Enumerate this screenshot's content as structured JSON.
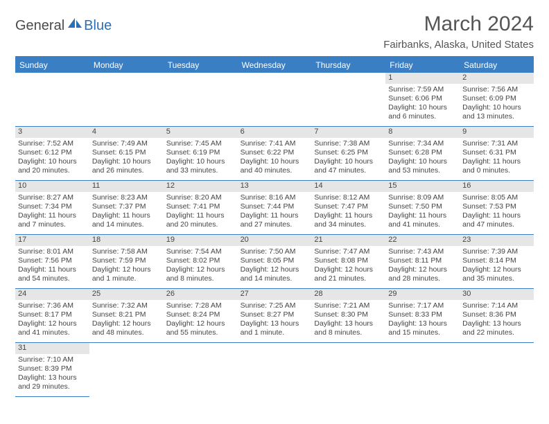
{
  "logo": {
    "text1": "General",
    "text2": "Blue"
  },
  "title": "March 2024",
  "location": "Fairbanks, Alaska, United States",
  "colors": {
    "header_bg": "#3a7fc4",
    "daynum_bg": "#e6e6e6"
  },
  "day_headers": [
    "Sunday",
    "Monday",
    "Tuesday",
    "Wednesday",
    "Thursday",
    "Friday",
    "Saturday"
  ],
  "weeks": [
    [
      null,
      null,
      null,
      null,
      null,
      {
        "n": "1",
        "sr": "Sunrise: 7:59 AM",
        "ss": "Sunset: 6:06 PM",
        "d1": "Daylight: 10 hours",
        "d2": "and 6 minutes."
      },
      {
        "n": "2",
        "sr": "Sunrise: 7:56 AM",
        "ss": "Sunset: 6:09 PM",
        "d1": "Daylight: 10 hours",
        "d2": "and 13 minutes."
      }
    ],
    [
      {
        "n": "3",
        "sr": "Sunrise: 7:52 AM",
        "ss": "Sunset: 6:12 PM",
        "d1": "Daylight: 10 hours",
        "d2": "and 20 minutes."
      },
      {
        "n": "4",
        "sr": "Sunrise: 7:49 AM",
        "ss": "Sunset: 6:15 PM",
        "d1": "Daylight: 10 hours",
        "d2": "and 26 minutes."
      },
      {
        "n": "5",
        "sr": "Sunrise: 7:45 AM",
        "ss": "Sunset: 6:19 PM",
        "d1": "Daylight: 10 hours",
        "d2": "and 33 minutes."
      },
      {
        "n": "6",
        "sr": "Sunrise: 7:41 AM",
        "ss": "Sunset: 6:22 PM",
        "d1": "Daylight: 10 hours",
        "d2": "and 40 minutes."
      },
      {
        "n": "7",
        "sr": "Sunrise: 7:38 AM",
        "ss": "Sunset: 6:25 PM",
        "d1": "Daylight: 10 hours",
        "d2": "and 47 minutes."
      },
      {
        "n": "8",
        "sr": "Sunrise: 7:34 AM",
        "ss": "Sunset: 6:28 PM",
        "d1": "Daylight: 10 hours",
        "d2": "and 53 minutes."
      },
      {
        "n": "9",
        "sr": "Sunrise: 7:31 AM",
        "ss": "Sunset: 6:31 PM",
        "d1": "Daylight: 11 hours",
        "d2": "and 0 minutes."
      }
    ],
    [
      {
        "n": "10",
        "sr": "Sunrise: 8:27 AM",
        "ss": "Sunset: 7:34 PM",
        "d1": "Daylight: 11 hours",
        "d2": "and 7 minutes."
      },
      {
        "n": "11",
        "sr": "Sunrise: 8:23 AM",
        "ss": "Sunset: 7:37 PM",
        "d1": "Daylight: 11 hours",
        "d2": "and 14 minutes."
      },
      {
        "n": "12",
        "sr": "Sunrise: 8:20 AM",
        "ss": "Sunset: 7:41 PM",
        "d1": "Daylight: 11 hours",
        "d2": "and 20 minutes."
      },
      {
        "n": "13",
        "sr": "Sunrise: 8:16 AM",
        "ss": "Sunset: 7:44 PM",
        "d1": "Daylight: 11 hours",
        "d2": "and 27 minutes."
      },
      {
        "n": "14",
        "sr": "Sunrise: 8:12 AM",
        "ss": "Sunset: 7:47 PM",
        "d1": "Daylight: 11 hours",
        "d2": "and 34 minutes."
      },
      {
        "n": "15",
        "sr": "Sunrise: 8:09 AM",
        "ss": "Sunset: 7:50 PM",
        "d1": "Daylight: 11 hours",
        "d2": "and 41 minutes."
      },
      {
        "n": "16",
        "sr": "Sunrise: 8:05 AM",
        "ss": "Sunset: 7:53 PM",
        "d1": "Daylight: 11 hours",
        "d2": "and 47 minutes."
      }
    ],
    [
      {
        "n": "17",
        "sr": "Sunrise: 8:01 AM",
        "ss": "Sunset: 7:56 PM",
        "d1": "Daylight: 11 hours",
        "d2": "and 54 minutes."
      },
      {
        "n": "18",
        "sr": "Sunrise: 7:58 AM",
        "ss": "Sunset: 7:59 PM",
        "d1": "Daylight: 12 hours",
        "d2": "and 1 minute."
      },
      {
        "n": "19",
        "sr": "Sunrise: 7:54 AM",
        "ss": "Sunset: 8:02 PM",
        "d1": "Daylight: 12 hours",
        "d2": "and 8 minutes."
      },
      {
        "n": "20",
        "sr": "Sunrise: 7:50 AM",
        "ss": "Sunset: 8:05 PM",
        "d1": "Daylight: 12 hours",
        "d2": "and 14 minutes."
      },
      {
        "n": "21",
        "sr": "Sunrise: 7:47 AM",
        "ss": "Sunset: 8:08 PM",
        "d1": "Daylight: 12 hours",
        "d2": "and 21 minutes."
      },
      {
        "n": "22",
        "sr": "Sunrise: 7:43 AM",
        "ss": "Sunset: 8:11 PM",
        "d1": "Daylight: 12 hours",
        "d2": "and 28 minutes."
      },
      {
        "n": "23",
        "sr": "Sunrise: 7:39 AM",
        "ss": "Sunset: 8:14 PM",
        "d1": "Daylight: 12 hours",
        "d2": "and 35 minutes."
      }
    ],
    [
      {
        "n": "24",
        "sr": "Sunrise: 7:36 AM",
        "ss": "Sunset: 8:17 PM",
        "d1": "Daylight: 12 hours",
        "d2": "and 41 minutes."
      },
      {
        "n": "25",
        "sr": "Sunrise: 7:32 AM",
        "ss": "Sunset: 8:21 PM",
        "d1": "Daylight: 12 hours",
        "d2": "and 48 minutes."
      },
      {
        "n": "26",
        "sr": "Sunrise: 7:28 AM",
        "ss": "Sunset: 8:24 PM",
        "d1": "Daylight: 12 hours",
        "d2": "and 55 minutes."
      },
      {
        "n": "27",
        "sr": "Sunrise: 7:25 AM",
        "ss": "Sunset: 8:27 PM",
        "d1": "Daylight: 13 hours",
        "d2": "and 1 minute."
      },
      {
        "n": "28",
        "sr": "Sunrise: 7:21 AM",
        "ss": "Sunset: 8:30 PM",
        "d1": "Daylight: 13 hours",
        "d2": "and 8 minutes."
      },
      {
        "n": "29",
        "sr": "Sunrise: 7:17 AM",
        "ss": "Sunset: 8:33 PM",
        "d1": "Daylight: 13 hours",
        "d2": "and 15 minutes."
      },
      {
        "n": "30",
        "sr": "Sunrise: 7:14 AM",
        "ss": "Sunset: 8:36 PM",
        "d1": "Daylight: 13 hours",
        "d2": "and 22 minutes."
      }
    ],
    [
      {
        "n": "31",
        "sr": "Sunrise: 7:10 AM",
        "ss": "Sunset: 8:39 PM",
        "d1": "Daylight: 13 hours",
        "d2": "and 29 minutes."
      },
      null,
      null,
      null,
      null,
      null,
      null
    ]
  ]
}
